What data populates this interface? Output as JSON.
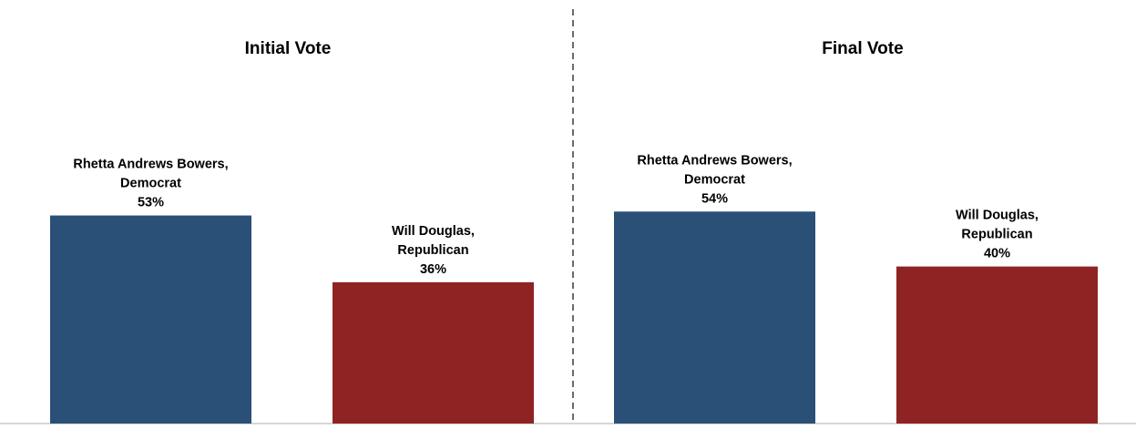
{
  "chart_data": [
    {
      "type": "bar",
      "title": "Initial Vote",
      "categories": [
        "Rhetta Andrews Bowers, Democrat",
        "Will Douglas, Republican"
      ],
      "values": [
        53,
        36
      ],
      "value_labels": [
        "53%",
        "36%"
      ],
      "label_lines": [
        [
          "Rhetta Andrews Bowers,",
          "Democrat"
        ],
        [
          "Will Douglas,",
          "Republican"
        ]
      ],
      "colors": [
        "#2a5078",
        "#8f2323"
      ],
      "ylim": [
        0,
        100
      ],
      "grid": false,
      "xlabel": "",
      "ylabel": ""
    },
    {
      "type": "bar",
      "title": "Final Vote",
      "categories": [
        "Rhetta Andrews Bowers, Democrat",
        "Will Douglas, Republican"
      ],
      "values": [
        54,
        40
      ],
      "value_labels": [
        "54%",
        "40%"
      ],
      "label_lines": [
        [
          "Rhetta Andrews Bowers,",
          "Democrat"
        ],
        [
          "Will Douglas,",
          "Republican"
        ]
      ],
      "colors": [
        "#2a5078",
        "#8f2323"
      ],
      "ylim": [
        0,
        100
      ],
      "grid": false,
      "xlabel": "",
      "ylabel": ""
    }
  ],
  "colors": {
    "divider": "#6b6b6b",
    "baseline": "#c8c8c8"
  }
}
